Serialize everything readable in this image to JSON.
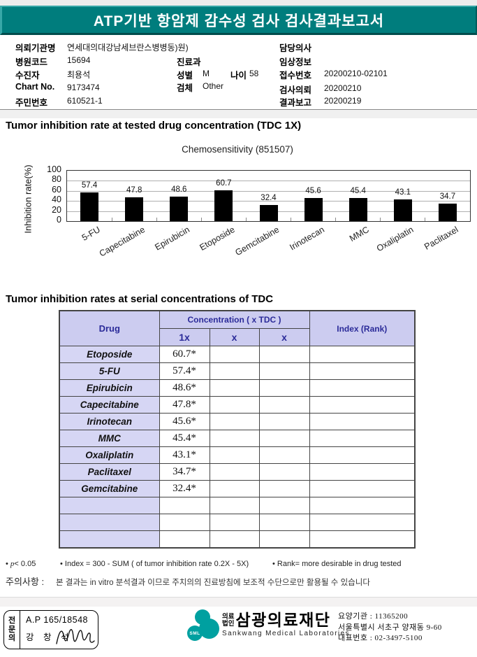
{
  "report": {
    "title": "ATP기반 항암제 감수성 검사 검사결과보고서"
  },
  "patient": {
    "requesting_org_label": "의뢰기관명",
    "requesting_org": "연세대의대강남세브란스병병동)원)",
    "hospital_code_label": "병원코드",
    "hospital_code": "15694",
    "patient_label": "수진자",
    "patient_name": "최용석",
    "chart_no_label": "Chart No.",
    "chart_no": "9173474",
    "resident_no_label": "주민번호",
    "resident_no": "610521-1",
    "department_label": "진료과",
    "department": "",
    "sex_label": "성별",
    "sex": "M",
    "age_label": "나이",
    "age": "58",
    "specimen_label": "검체",
    "specimen": "Other",
    "doctor_label": "담당의사",
    "doctor": "",
    "clinical_info_label": "임상정보",
    "clinical_info": "",
    "receipt_no_label": "접수번호",
    "receipt_no": "20200210-02101",
    "request_date_label": "검사의뢰",
    "request_date": "20200210",
    "report_date_label": "결과보고",
    "report_date": "20200219"
  },
  "sections": {
    "chart_heading": "Tumor inhibition rate at tested drug concentration (TDC 1X)",
    "table_heading": "Tumor inhibition rates at serial concentrations of TDC"
  },
  "chart_data": {
    "type": "bar",
    "title": "Chemosensitivity (851507)",
    "ylabel": "Inhibition rate(%)",
    "categories": [
      "5-FU",
      "Capecitabine",
      "Epirubicin",
      "Etoposide",
      "Gemcitabine",
      "Irinotecan",
      "MMC",
      "Oxaliplatin",
      "Paclitaxel"
    ],
    "values": [
      57.4,
      47.8,
      48.6,
      60.7,
      32.4,
      45.6,
      45.4,
      43.1,
      34.7
    ],
    "ylim": [
      0,
      100
    ],
    "yticks": [
      0,
      20,
      40,
      60,
      80,
      100
    ],
    "bar_color": "#000000",
    "grid": true,
    "legend": "none"
  },
  "table": {
    "columns": {
      "drug": "Drug",
      "concentration": "Concentration ( x TDC )",
      "sub": [
        "1x",
        "x",
        "x"
      ],
      "index": "Index (Rank)"
    },
    "rows": [
      {
        "drug": "Etoposide",
        "x1": "60.7*",
        "x2": "",
        "x3": "",
        "index": ""
      },
      {
        "drug": "5-FU",
        "x1": "57.4*",
        "x2": "",
        "x3": "",
        "index": ""
      },
      {
        "drug": "Epirubicin",
        "x1": "48.6*",
        "x2": "",
        "x3": "",
        "index": ""
      },
      {
        "drug": "Capecitabine",
        "x1": "47.8*",
        "x2": "",
        "x3": "",
        "index": ""
      },
      {
        "drug": "Irinotecan",
        "x1": "45.6*",
        "x2": "",
        "x3": "",
        "index": ""
      },
      {
        "drug": "MMC",
        "x1": "45.4*",
        "x2": "",
        "x3": "",
        "index": ""
      },
      {
        "drug": "Oxaliplatin",
        "x1": "43.1*",
        "x2": "",
        "x3": "",
        "index": ""
      },
      {
        "drug": "Paclitaxel",
        "x1": "34.7*",
        "x2": "",
        "x3": "",
        "index": ""
      },
      {
        "drug": "Gemcitabine",
        "x1": "32.4*",
        "x2": "",
        "x3": "",
        "index": ""
      }
    ],
    "empty_rows": 3
  },
  "notes": {
    "p_bullet": "•",
    "p_italic": "p",
    "p_rest": "< 0.05",
    "index_note": "• Index = 300 - SUM ( of tumor inhibition rate 0.2X  -  5X)",
    "rank_note": "• Rank= more desirable in drug tested",
    "caution_label": "주의사항 :",
    "caution_text": "본 결과는 in vitro 분석결과 이므로 주치의의 진료방침에 보조적 수단으로만 활용될 수 있습니다"
  },
  "footer": {
    "stamp": {
      "role_chars": [
        "전",
        "문",
        "의"
      ],
      "license": "A.P 165/18548",
      "name": "강 창 석"
    },
    "lab": {
      "logo_text": "SML",
      "type_line1": "의료",
      "type_line2": "법인",
      "name": "삼광의료재단",
      "name_en": "Sankwang Medical Laboratories",
      "org_no": "요양기관 : 11365200",
      "address": "서울특별시 서초구 양재동 9-60",
      "phone": "대표번호 : 02-3497-5100"
    }
  },
  "colors": {
    "accent_teal": "#007d7d",
    "logo_teal": "#00a0a0",
    "table_header_bg": "#ccccf0",
    "table_drug_bg": "#d6d6f4",
    "navy_text": "#2b2b99",
    "bar_color": "#000000"
  }
}
